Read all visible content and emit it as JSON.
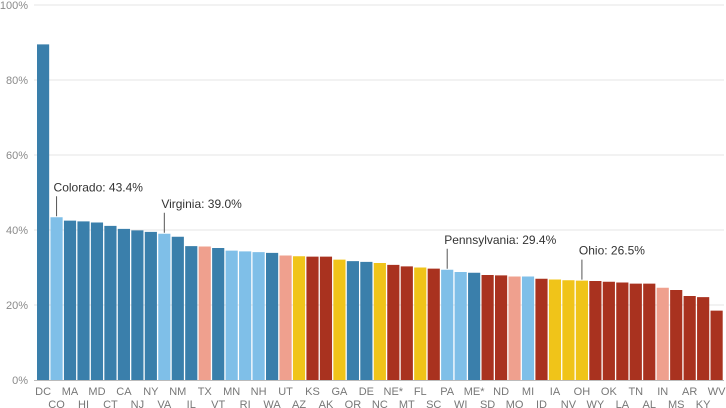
{
  "chart_data": {
    "type": "bar",
    "ylim": [
      0,
      100
    ],
    "yticks": [
      "0%",
      "20%",
      "40%",
      "60%",
      "80%",
      "100%"
    ],
    "grid": true,
    "palette": {
      "strong_dem": "#3a7fab",
      "lean_dem": "#7fbfe8",
      "tossup": "#f0c419",
      "lean_rep": "#efa08e",
      "strong_rep": "#a9321f"
    },
    "categories": [
      "DC",
      "CO",
      "MA",
      "HI",
      "MD",
      "CT",
      "CA",
      "NJ",
      "NY",
      "VA",
      "NM",
      "IL",
      "TX",
      "VT",
      "MN",
      "RI",
      "NH",
      "WA",
      "UT",
      "AZ",
      "KS",
      "AK",
      "GA",
      "OR",
      "DE",
      "NC",
      "NE*",
      "MT",
      "FL",
      "SC",
      "PA",
      "WI",
      "ME*",
      "SD",
      "ND",
      "MO",
      "MI",
      "ID",
      "IA",
      "NV",
      "OH",
      "WY",
      "OK",
      "LA",
      "TN",
      "AL",
      "IN",
      "MS",
      "AR",
      "KY",
      "WV"
    ],
    "values": [
      89.5,
      43.4,
      42.5,
      42.3,
      42.0,
      41.1,
      40.3,
      39.9,
      39.5,
      39.0,
      38.2,
      35.7,
      35.6,
      35.2,
      34.5,
      34.3,
      34.1,
      33.9,
      33.2,
      33.0,
      32.9,
      32.9,
      32.1,
      31.7,
      31.5,
      31.2,
      30.7,
      30.3,
      30.0,
      29.7,
      29.4,
      28.8,
      28.6,
      28.0,
      27.9,
      27.6,
      27.6,
      27.0,
      26.8,
      26.6,
      26.5,
      26.4,
      26.2,
      26.0,
      25.7,
      25.7,
      24.6,
      24.0,
      22.4,
      22.1,
      18.5
    ],
    "groups": [
      "strong_dem",
      "lean_dem",
      "strong_dem",
      "strong_dem",
      "strong_dem",
      "strong_dem",
      "strong_dem",
      "strong_dem",
      "strong_dem",
      "lean_dem",
      "strong_dem",
      "strong_dem",
      "lean_rep",
      "strong_dem",
      "lean_dem",
      "lean_dem",
      "lean_dem",
      "strong_dem",
      "lean_rep",
      "tossup",
      "strong_rep",
      "strong_rep",
      "tossup",
      "strong_dem",
      "strong_dem",
      "tossup",
      "strong_rep",
      "strong_rep",
      "tossup",
      "strong_rep",
      "lean_dem",
      "lean_dem",
      "strong_dem",
      "strong_rep",
      "strong_rep",
      "lean_rep",
      "lean_dem",
      "strong_rep",
      "tossup",
      "tossup",
      "tossup",
      "strong_rep",
      "strong_rep",
      "strong_rep",
      "strong_rep",
      "strong_rep",
      "lean_rep",
      "strong_rep",
      "strong_rep",
      "strong_rep",
      "strong_rep"
    ],
    "annotations": [
      {
        "category": "CO",
        "text": "Colorado: 43.4%"
      },
      {
        "category": "VA",
        "text": "Virginia: 39.0%"
      },
      {
        "category": "PA",
        "text": "Pennsylvania: 29.4%"
      },
      {
        "category": "OH",
        "text": "Ohio: 26.5%"
      }
    ]
  }
}
